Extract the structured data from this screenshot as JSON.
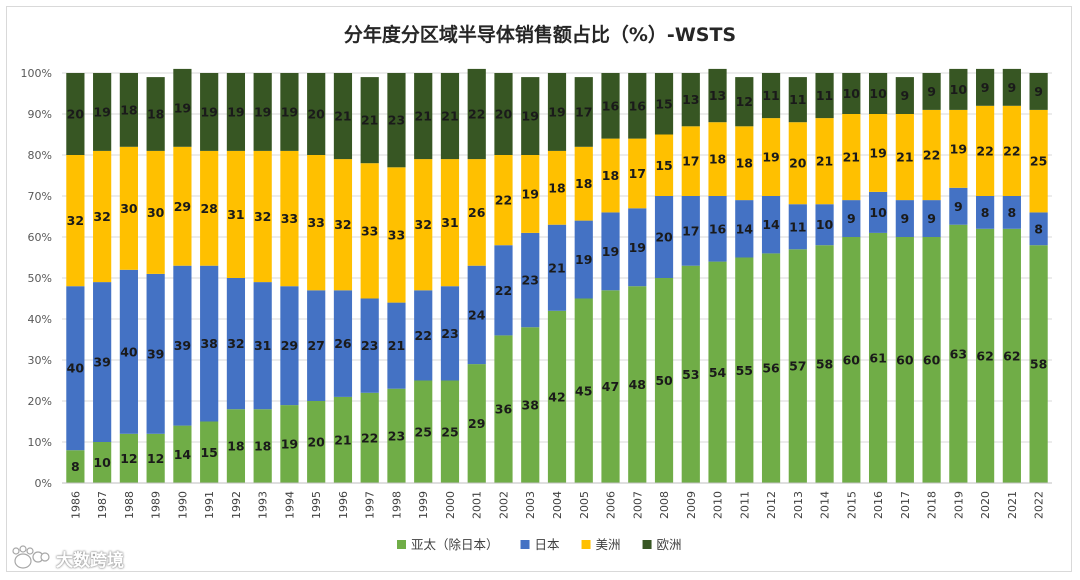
{
  "chart_data": {
    "type": "bar",
    "stacked": true,
    "title": "分年度分区域半导体销售额占比（%）-WSTS",
    "ylim": [
      0,
      100
    ],
    "ytick_labels": [
      "0%",
      "10%",
      "20%",
      "30%",
      "40%",
      "50%",
      "60%",
      "70%",
      "80%",
      "90%",
      "100%"
    ],
    "legend_position": "bottom",
    "categories": [
      "1986",
      "1987",
      "1988",
      "1989",
      "1990",
      "1991",
      "1992",
      "1993",
      "1994",
      "1995",
      "1996",
      "1997",
      "1998",
      "1999",
      "2000",
      "2001",
      "2002",
      "2003",
      "2004",
      "2005",
      "2006",
      "2007",
      "2008",
      "2009",
      "2010",
      "2011",
      "2012",
      "2013",
      "2014",
      "2015",
      "2016",
      "2017",
      "2018",
      "2019",
      "2020",
      "2021",
      "2022"
    ],
    "series": [
      {
        "name": "亚太（除日本）",
        "color": "#70ad47",
        "values": [
          8,
          10,
          12,
          12,
          14,
          15,
          18,
          18,
          19,
          20,
          21,
          22,
          23,
          25,
          25,
          29,
          36,
          38,
          42,
          45,
          47,
          48,
          50,
          53,
          54,
          55,
          56,
          57,
          58,
          60,
          61,
          60,
          60,
          63,
          62,
          62,
          58
        ]
      },
      {
        "name": "日本",
        "color": "#4472c4",
        "values": [
          40,
          39,
          40,
          39,
          39,
          38,
          32,
          31,
          29,
          27,
          26,
          23,
          21,
          22,
          23,
          24,
          22,
          23,
          21,
          19,
          19,
          19,
          20,
          17,
          16,
          14,
          14,
          11,
          10,
          9,
          10,
          9,
          9,
          9,
          8,
          8,
          8
        ]
      },
      {
        "name": "美洲",
        "color": "#ffc000",
        "values": [
          32,
          32,
          30,
          30,
          29,
          28,
          31,
          32,
          33,
          33,
          32,
          33,
          33,
          32,
          31,
          26,
          22,
          19,
          18,
          18,
          18,
          17,
          15,
          17,
          18,
          18,
          19,
          20,
          21,
          21,
          19,
          21,
          22,
          19,
          22,
          22,
          25
        ]
      },
      {
        "name": "欧洲",
        "color": "#375623",
        "values": [
          20,
          19,
          18,
          18,
          19,
          19,
          19,
          19,
          19,
          20,
          21,
          21,
          23,
          21,
          21,
          22,
          20,
          19,
          19,
          17,
          16,
          16,
          15,
          13,
          13,
          12,
          11,
          11,
          11,
          10,
          10,
          9,
          9,
          10,
          9,
          9,
          9
        ]
      }
    ]
  },
  "watermark": {
    "text": "大数跨境",
    "icon": "paw-logo-icon"
  }
}
